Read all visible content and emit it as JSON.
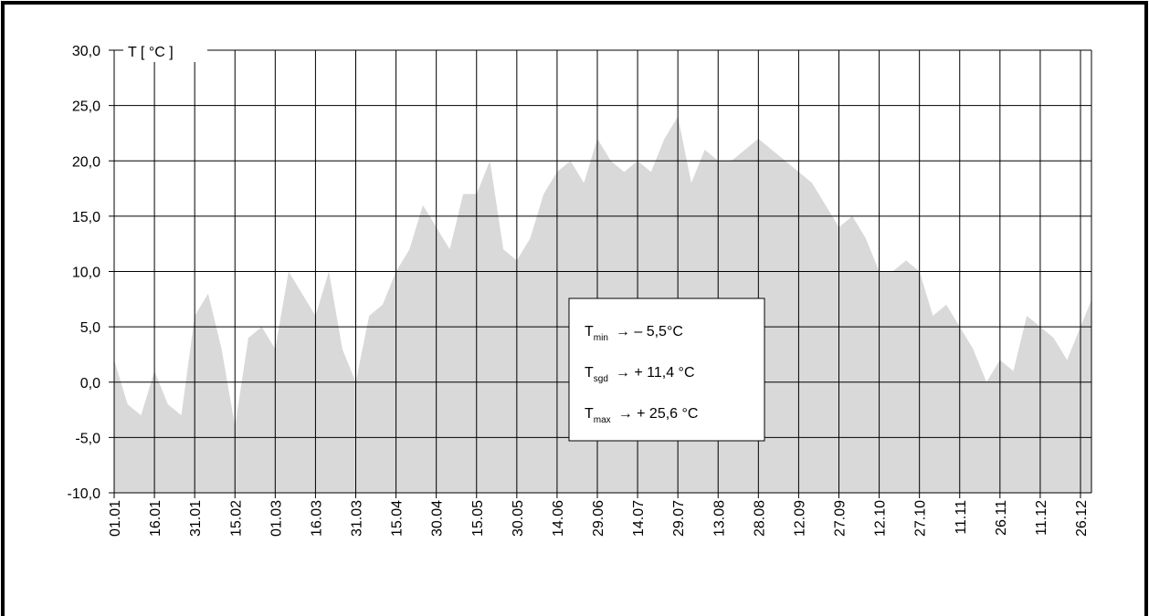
{
  "chart_data": {
    "type": "area",
    "y_label": "T [ °C ]",
    "color": "#d9d9d9",
    "grid": true,
    "categories": [
      "01.01",
      null,
      null,
      "16.01",
      null,
      null,
      "31.01",
      null,
      null,
      "15.02",
      null,
      null,
      "01.03",
      null,
      null,
      "16.03",
      null,
      null,
      "31.03",
      null,
      null,
      "15.04",
      null,
      null,
      "30.04",
      null,
      null,
      "15.05",
      null,
      null,
      "30.05",
      null,
      null,
      "14.06",
      null,
      null,
      "29.06",
      null,
      null,
      "14.07",
      null,
      null,
      "29.07",
      null,
      null,
      "13.08",
      null,
      null,
      "28.08",
      null,
      null,
      "12.09",
      null,
      null,
      "27.09",
      null,
      null,
      "12.10",
      null,
      null,
      "27.10",
      null,
      null,
      "11.11",
      null,
      null,
      "26.11",
      null,
      null,
      "11.12",
      null,
      null,
      "26.12",
      null
    ],
    "values": [
      2,
      -2,
      -3,
      1,
      -2,
      -3,
      6,
      8,
      3,
      -4,
      4,
      5,
      3,
      10,
      8,
      6,
      10,
      3,
      0,
      6,
      7,
      10,
      12,
      16,
      14,
      12,
      17,
      17,
      20,
      12,
      11,
      13,
      17,
      19,
      20,
      18,
      22,
      20,
      19,
      20,
      19,
      22,
      24,
      18,
      21,
      20,
      20,
      21,
      22,
      21,
      20,
      19,
      18,
      16,
      14,
      15,
      13,
      10,
      10,
      11,
      10,
      6,
      7,
      5,
      3,
      0,
      2,
      1,
      6,
      5,
      4,
      2,
      5,
      8
    ],
    "ylim": [
      -10,
      30
    ],
    "yticks": [
      {
        "value": -10,
        "label": "-10,0"
      },
      {
        "value": -5,
        "label": "-5,0"
      },
      {
        "value": 0,
        "label": "0,0"
      },
      {
        "value": 5,
        "label": "5,0"
      },
      {
        "value": 10,
        "label": "10,0"
      },
      {
        "value": 15,
        "label": "15,0"
      },
      {
        "value": 20,
        "label": "20,0"
      },
      {
        "value": 25,
        "label": "25,0"
      },
      {
        "value": 30,
        "label": "30,0"
      }
    ],
    "annotations": [
      {
        "symbol": "T",
        "subscript": "min",
        "text": "→ –   5,5°C"
      },
      {
        "symbol": "T",
        "subscript": "sgd",
        "text": "→ + 11,4 °C"
      },
      {
        "symbol": "T",
        "subscript": "max",
        "text": "→ + 25,6 °C"
      }
    ]
  }
}
